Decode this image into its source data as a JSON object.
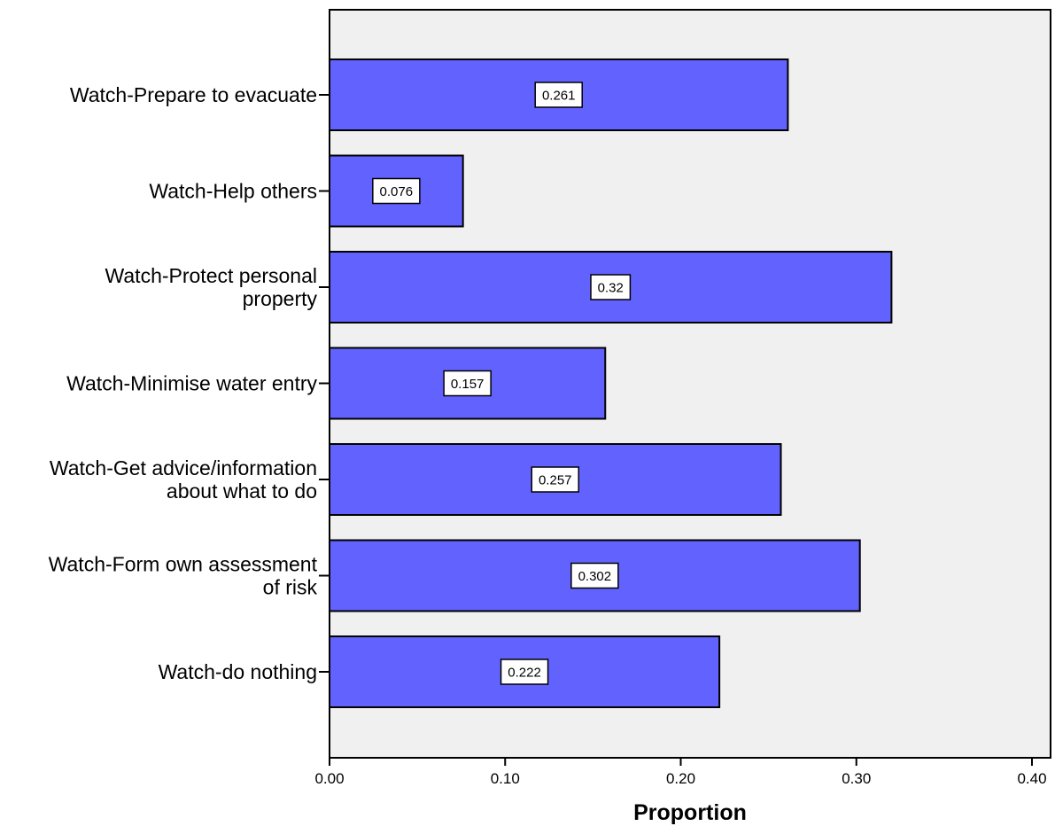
{
  "chart_data": {
    "type": "bar",
    "orientation": "horizontal",
    "title": "",
    "xlabel": "Proportion",
    "ylabel": "",
    "categories": [
      [
        "Watch-Prepare to evacuate"
      ],
      [
        "Watch-Help others"
      ],
      [
        "Watch-Protect personal",
        "property"
      ],
      [
        "Watch-Minimise water entry"
      ],
      [
        "Watch-Get advice/information",
        "about what to do"
      ],
      [
        "Watch-Form own assessment",
        "of risk"
      ],
      [
        "Watch-do nothing"
      ]
    ],
    "values": [
      0.261,
      0.076,
      0.32,
      0.157,
      0.257,
      0.302,
      0.222
    ],
    "data_labels": [
      "0.261",
      "0.076",
      "0.32",
      "0.157",
      "0.257",
      "0.302",
      "0.222"
    ],
    "xlim": [
      0,
      0.42
    ],
    "xticks": [
      0.0,
      0.1,
      0.2,
      0.3,
      0.4
    ],
    "xtick_labels": [
      "0.00",
      "0.10",
      "0.20",
      "0.30",
      "0.40"
    ],
    "grid": false,
    "colors": {
      "bar_fill": "#6262FF",
      "bar_stroke": "#000000",
      "plot_background": "#F0F0F0"
    }
  }
}
